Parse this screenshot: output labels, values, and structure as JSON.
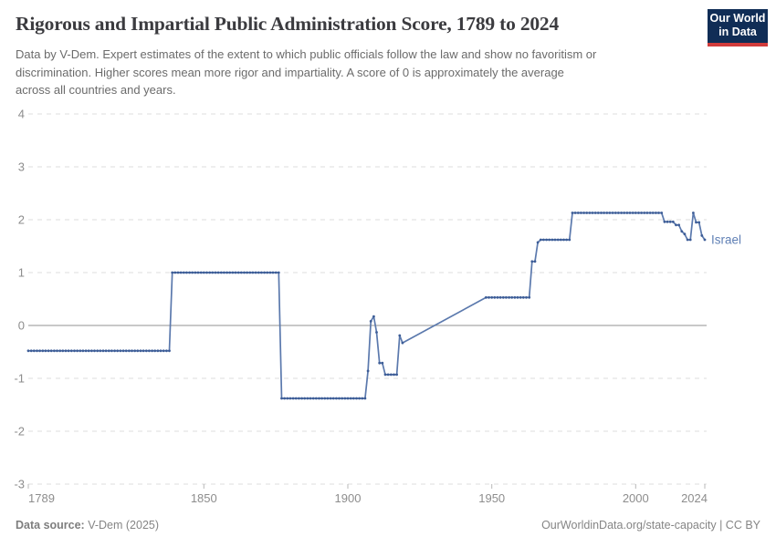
{
  "header": {
    "title": "Rigorous and Impartial Public Administration Score, 1789 to 2024",
    "subtitle_lines": [
      "Data by V-Dem. Expert estimates of the extent to which public officials follow the law and show no favoritism or",
      "discrimination. Higher scores mean more rigor and impartiality. A score of 0 is approximately the average",
      "across all countries and years."
    ],
    "logo": {
      "line1": "Our World",
      "line2": "in Data",
      "bg_color": "#102D56",
      "accent_color": "#D13B3B"
    }
  },
  "chart_data": {
    "type": "line",
    "title": "Rigorous and Impartial Public Administration Score, 1789 to 2024",
    "xlabel": "",
    "ylabel": "",
    "xlim": [
      1789,
      2024
    ],
    "ylim": [
      -3,
      4
    ],
    "x_ticks": [
      1789,
      1850,
      1900,
      1950,
      2000,
      2024
    ],
    "y_ticks": [
      4,
      3,
      2,
      1,
      0,
      -1,
      -2,
      -3
    ],
    "grid": "horizontal dashed gridlines, solid line at 0, no vertical gridlines",
    "legend_position": "label at end of line",
    "colors": {
      "line": "#5B79AD",
      "marker": "#3D5D97",
      "series_label": "#6080B5",
      "grid": "#DCDCDC",
      "zero_line": "#A6A6A6",
      "axis_text": "#8D8D8D",
      "tick_mark": "#B8B8B8"
    },
    "series": [
      {
        "name": "Israel",
        "color": "#4C6A9C",
        "note": "yearly points; values constant over each run; no data 1920-1947 so a straight segment connects 1919 to 1948",
        "runs_year_start_end_value": [
          [
            1789,
            1838,
            -0.48
          ],
          [
            1839,
            1876,
            1.0
          ],
          [
            1877,
            1906,
            -1.38
          ],
          [
            1907,
            1907,
            -0.86
          ],
          [
            1908,
            1908,
            0.08
          ],
          [
            1909,
            1909,
            0.17
          ],
          [
            1910,
            1910,
            -0.13
          ],
          [
            1911,
            1912,
            -0.71
          ],
          [
            1913,
            1917,
            -0.93
          ],
          [
            1918,
            1918,
            -0.19
          ],
          [
            1919,
            1919,
            -0.33
          ],
          [
            1948,
            1963,
            0.53
          ],
          [
            1964,
            1965,
            1.21
          ],
          [
            1966,
            1966,
            1.57
          ],
          [
            1967,
            1977,
            1.62
          ],
          [
            1978,
            2009,
            2.13
          ],
          [
            2010,
            2013,
            1.96
          ],
          [
            2014,
            2015,
            1.9
          ],
          [
            2016,
            2016,
            1.78
          ],
          [
            2017,
            2017,
            1.73
          ],
          [
            2018,
            2019,
            1.62
          ],
          [
            2020,
            2020,
            2.13
          ],
          [
            2021,
            2022,
            1.95
          ],
          [
            2023,
            2023,
            1.7
          ],
          [
            2024,
            2024,
            1.62
          ]
        ]
      }
    ]
  },
  "footer": {
    "source_label": "Data source:",
    "source_value": " V-Dem (2025)",
    "credit": "OurWorldinData.org/state-capacity | CC BY"
  }
}
